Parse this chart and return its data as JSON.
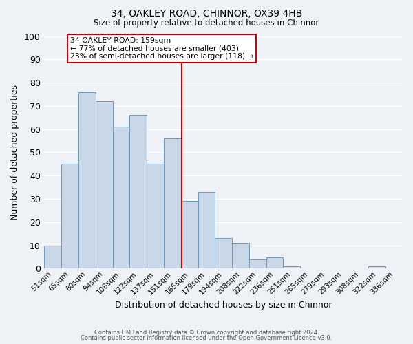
{
  "title": "34, OAKLEY ROAD, CHINNOR, OX39 4HB",
  "subtitle": "Size of property relative to detached houses in Chinnor",
  "xlabel": "Distribution of detached houses by size in Chinnor",
  "ylabel": "Number of detached properties",
  "bar_labels": [
    "51sqm",
    "65sqm",
    "80sqm",
    "94sqm",
    "108sqm",
    "122sqm",
    "137sqm",
    "151sqm",
    "165sqm",
    "179sqm",
    "194sqm",
    "208sqm",
    "222sqm",
    "236sqm",
    "251sqm",
    "265sqm",
    "279sqm",
    "293sqm",
    "308sqm",
    "322sqm",
    "336sqm"
  ],
  "bar_values": [
    10,
    45,
    76,
    72,
    61,
    66,
    45,
    56,
    29,
    33,
    13,
    11,
    4,
    5,
    1,
    0,
    0,
    0,
    0,
    1,
    0
  ],
  "bar_color": "#c8d8e8",
  "bar_edgecolor": "#7098b8",
  "bg_color": "#eef2f7",
  "grid_color": "#ffffff",
  "vline_color": "#cc0000",
  "annotation_line1": "34 OAKLEY ROAD: 159sqm",
  "annotation_line2": "← 77% of detached houses are smaller (403)",
  "annotation_line3": "23% of semi-detached houses are larger (118) →",
  "annotation_box_color": "#cc0000",
  "ylim": [
    0,
    100
  ],
  "yticks": [
    0,
    10,
    20,
    30,
    40,
    50,
    60,
    70,
    80,
    90,
    100
  ],
  "footer1": "Contains HM Land Registry data © Crown copyright and database right 2024.",
  "footer2": "Contains public sector information licensed under the Open Government Licence v3.0.",
  "vline_pos": 7.571
}
